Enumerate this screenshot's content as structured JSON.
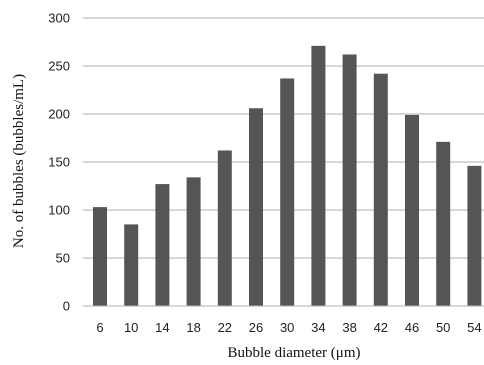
{
  "chart_data": {
    "type": "bar",
    "categories": [
      "6",
      "10",
      "14",
      "18",
      "22",
      "26",
      "30",
      "34",
      "38",
      "42",
      "46",
      "50",
      "54"
    ],
    "values": [
      103,
      85,
      127,
      134,
      162,
      206,
      237,
      271,
      262,
      242,
      199,
      171,
      146
    ],
    "xlabel": "Bubble diameter (μm)",
    "ylabel": "No. of bubbles (bubbles/mL)",
    "ylim": [
      0,
      300
    ],
    "yticks": [
      0,
      50,
      100,
      150,
      200,
      250,
      300
    ],
    "grid": true,
    "bar_color": "#555555",
    "grid_color": "#b0b0b0"
  }
}
